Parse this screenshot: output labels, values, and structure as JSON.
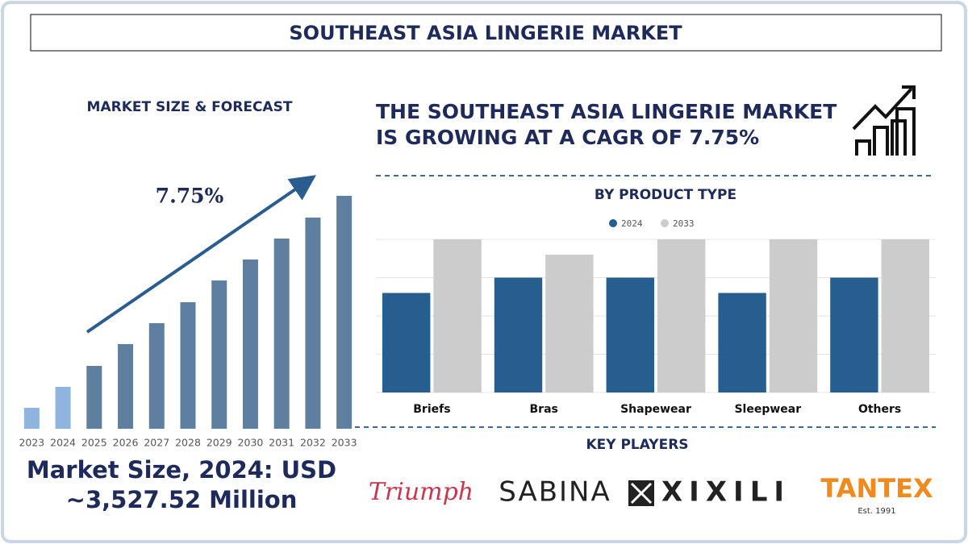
{
  "header": {
    "title": "SOUTHEAST ASIA LINGERIE MARKET"
  },
  "left_heading": "MARKET SIZE & FORECAST",
  "headline": [
    "THE SOUTHEAST ASIA LINGERIE MARKET",
    "IS GROWING AT A CAGR OF 7.75%"
  ],
  "market_size": [
    "Market Size, 2024: USD",
    "~3,527.52 Million"
  ],
  "key_players": {
    "title": "KEY PLAYERS",
    "names": [
      "Triumph",
      "SABINA",
      "XIXILI",
      "TANTEX"
    ],
    "tantex_note": "Est. 1991"
  },
  "chart_data": [
    {
      "type": "bar",
      "annotation": "7.75%",
      "categories": [
        "2023",
        "2024",
        "2025",
        "2026",
        "2027",
        "2028",
        "2029",
        "2030",
        "2031",
        "2032",
        "2033"
      ],
      "values": [
        26,
        52,
        78,
        105,
        131,
        157,
        184,
        210,
        236,
        262,
        289
      ],
      "colors": [
        "#8fb4de",
        "#8fb4de",
        "#5f7fa0",
        "#5f7fa0",
        "#5f7fa0",
        "#5f7fa0",
        "#5f7fa0",
        "#5f7fa0",
        "#5f7fa0",
        "#5f7fa0",
        "#5f7fa0"
      ]
    },
    {
      "type": "bar",
      "title": "BY PRODUCT TYPE",
      "categories": [
        "Briefs",
        "Bras",
        "Shapewear",
        "Sleepwear",
        "Others"
      ],
      "series": [
        {
          "name": "2024",
          "color": "#255e8f",
          "values": [
            2.6,
            3.0,
            3.0,
            2.6,
            3.0
          ]
        },
        {
          "name": "2033",
          "color": "#cccccc",
          "values": [
            4,
            3.6,
            4,
            4,
            4
          ]
        }
      ],
      "ylim": [
        0,
        4
      ],
      "yticks": [
        0,
        1,
        2,
        3,
        4
      ],
      "grid": true
    }
  ]
}
